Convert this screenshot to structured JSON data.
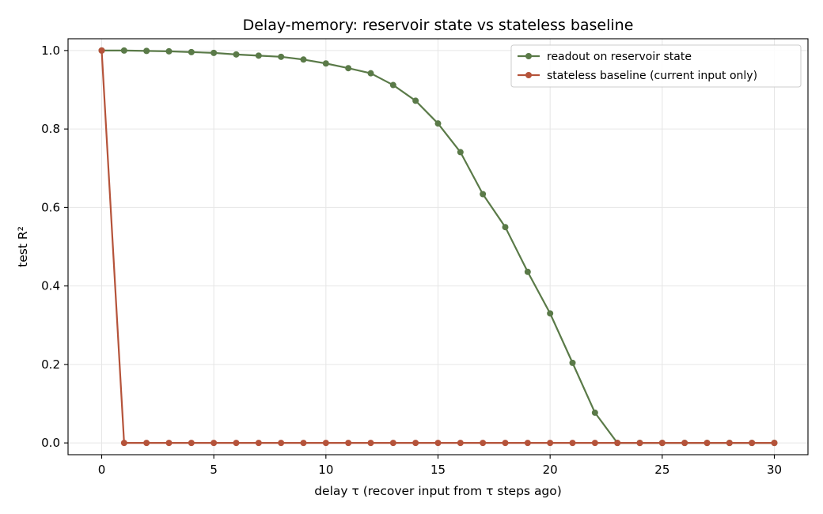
{
  "chart_data": {
    "type": "line",
    "title": "Delay-memory: reservoir state vs stateless baseline",
    "xlabel": "delay τ  (recover input from τ steps ago)",
    "ylabel": "test R²",
    "xlim": [
      -1.5,
      31.5
    ],
    "ylim": [
      -0.03,
      1.03
    ],
    "xticks": [
      0,
      5,
      10,
      15,
      20,
      25,
      30
    ],
    "xtick_labels": [
      "0",
      "5",
      "10",
      "15",
      "20",
      "25",
      "30"
    ],
    "yticks": [
      0.0,
      0.2,
      0.4,
      0.6,
      0.8,
      1.0
    ],
    "ytick_labels": [
      "0.0",
      "0.2",
      "0.4",
      "0.6",
      "0.8",
      "1.0"
    ],
    "grid": true,
    "legend_position": "top-right",
    "x": [
      0,
      1,
      2,
      3,
      4,
      5,
      6,
      7,
      8,
      9,
      10,
      11,
      12,
      13,
      14,
      15,
      16,
      17,
      18,
      19,
      20,
      21,
      22,
      23,
      24,
      25,
      26,
      27,
      28,
      29,
      30
    ],
    "series": [
      {
        "name": "readout on reservoir state",
        "color": "#5a7a48",
        "values": [
          1.0,
          1.0,
          0.999,
          0.998,
          0.996,
          0.994,
          0.99,
          0.987,
          0.984,
          0.977,
          0.967,
          0.955,
          0.942,
          0.912,
          0.872,
          0.814,
          0.741,
          0.634,
          0.55,
          0.436,
          0.33,
          0.204,
          0.077,
          0.0,
          0.0,
          0.0,
          0.0,
          0.0,
          0.0,
          0.0,
          0.0
        ]
      },
      {
        "name": "stateless baseline (current input only)",
        "color": "#b5533a",
        "values": [
          1.0,
          0.0,
          0.0,
          0.0,
          0.0,
          0.0,
          0.0,
          0.0,
          0.0,
          0.0,
          0.0,
          0.0,
          0.0,
          0.0,
          0.0,
          0.0,
          0.0,
          0.0,
          0.0,
          0.0,
          0.0,
          0.0,
          0.0,
          0.0,
          0.0,
          0.0,
          0.0,
          0.0,
          0.0,
          0.0,
          0.0
        ]
      }
    ]
  }
}
